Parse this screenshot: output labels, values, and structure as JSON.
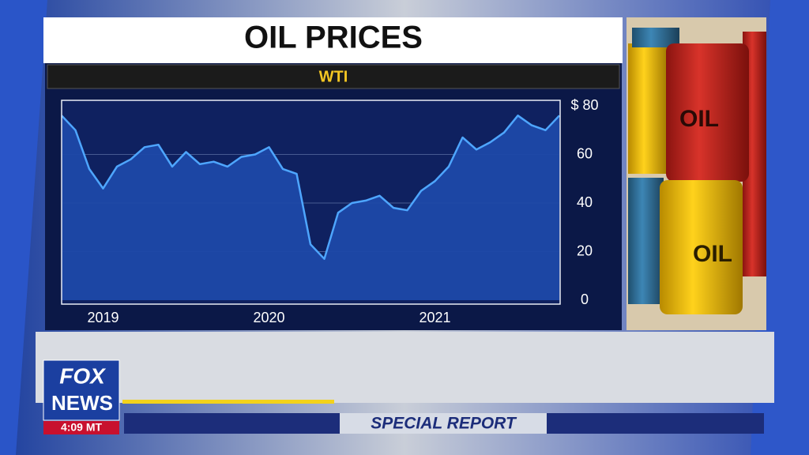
{
  "chart_data": {
    "type": "area",
    "title": "OIL PRICES",
    "subtitle": "WTI",
    "categories": [
      null,
      null,
      null,
      "2019",
      null,
      null,
      null,
      null,
      null,
      null,
      null,
      null,
      null,
      null,
      null,
      "2020",
      null,
      null,
      null,
      null,
      null,
      null,
      null,
      null,
      null,
      null,
      null,
      "2021",
      null,
      null,
      null,
      null,
      null,
      null,
      null,
      null,
      null
    ],
    "values": [
      76,
      70,
      54,
      46,
      55,
      58,
      63,
      64,
      55,
      61,
      56,
      57,
      55,
      59,
      60,
      63,
      54,
      52,
      23,
      17,
      36,
      40,
      41,
      43,
      38,
      37,
      45,
      49,
      55,
      67,
      62,
      65,
      69,
      76,
      72,
      70,
      76
    ],
    "color": "#4ea6ff",
    "fill": "#1d49a8",
    "ylim": [
      0,
      80
    ],
    "yticks": [
      0,
      20,
      40,
      60,
      {
        "value": 80,
        "label": "$ 80"
      }
    ],
    "grid": true
  },
  "image_labels": [
    "OIL",
    "OIL"
  ],
  "logo": {
    "line1": "FOX",
    "line2": "NEWS",
    "time": "4:09 MT"
  },
  "banner": "SPECIAL REPORT"
}
